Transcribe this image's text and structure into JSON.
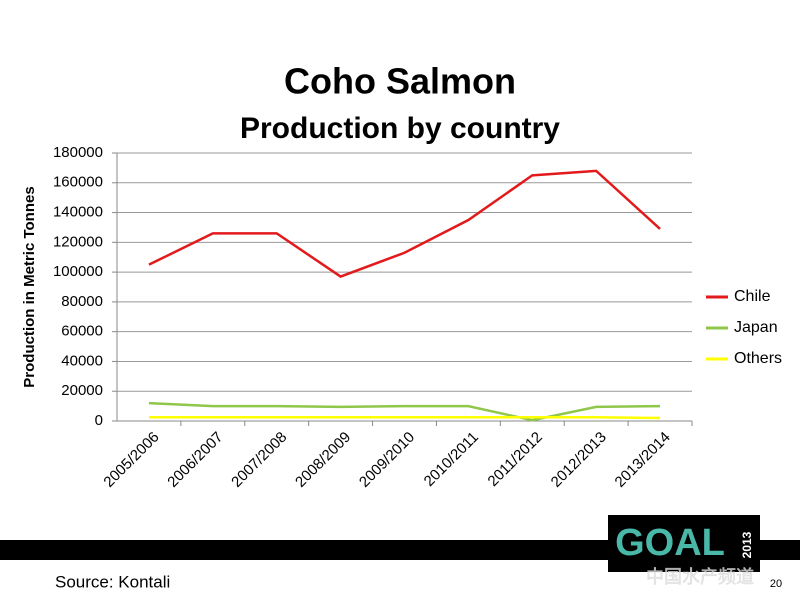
{
  "chart_data": {
    "type": "line",
    "title": "Coho Salmon",
    "subtitle": "Production by country",
    "y_label": "Production in Metric Tonnes",
    "categories": [
      "2005/2006",
      "2006/2007",
      "2007/2008",
      "2008/2009",
      "2009/2010",
      "2010/2011",
      "2011/2012",
      "2012/2013",
      "2013/2014"
    ],
    "series": [
      {
        "name": "Chile",
        "color": "#e31a1c",
        "values": [
          105000,
          126000,
          126000,
          97000,
          113000,
          135000,
          165000,
          168000,
          129000
        ]
      },
      {
        "name": "Japan",
        "color": "#8fc74a",
        "values": [
          12000,
          10000,
          10000,
          9500,
          10000,
          10000,
          500,
          9500,
          10000
        ]
      },
      {
        "name": "Others",
        "color": "#ffff00",
        "values": [
          2500,
          2500,
          2500,
          2500,
          2500,
          2500,
          2500,
          2500,
          2000
        ]
      }
    ],
    "ylim": [
      0,
      180000
    ],
    "yticks": [
      0,
      20000,
      40000,
      60000,
      80000,
      100000,
      120000,
      140000,
      160000,
      180000
    ],
    "grid": true,
    "legend": "right"
  },
  "footer": {
    "source": "Source: Kontali",
    "page": "20"
  },
  "logo": {
    "text": "GOAL",
    "year": "2013",
    "watermark": "中国水产频道"
  }
}
